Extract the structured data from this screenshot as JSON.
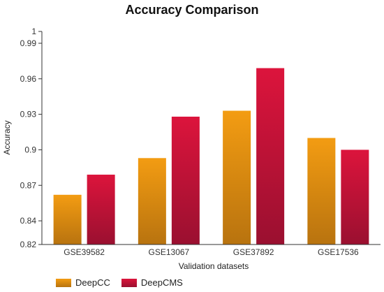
{
  "chart_data": {
    "type": "bar",
    "title": "Accuracy Comparison",
    "xlabel": "Validation datasets",
    "ylabel": "Accuracy",
    "categories": [
      "GSE39582",
      "GSE13067",
      "GSE37892",
      "GSE17536"
    ],
    "series": [
      {
        "name": "DeepCC",
        "values": [
          0.862,
          0.893,
          0.933,
          0.91
        ],
        "color": "#f39c12",
        "color_dark": "#b8730f"
      },
      {
        "name": "DeepCMS",
        "values": [
          0.879,
          0.928,
          0.969,
          0.9
        ],
        "color": "#dc143c",
        "color_dark": "#9a1030"
      }
    ],
    "ylim": [
      0.82,
      1.0
    ],
    "yticks": [
      0.82,
      0.84,
      0.87,
      0.9,
      0.93,
      0.96,
      0.99,
      1
    ],
    "ytick_labels": [
      "0.82",
      "0.84",
      "0.87",
      "0.9",
      "0.93",
      "0.96",
      "0.99",
      "1"
    ],
    "grid": false,
    "legend_position": "bottom-left"
  }
}
